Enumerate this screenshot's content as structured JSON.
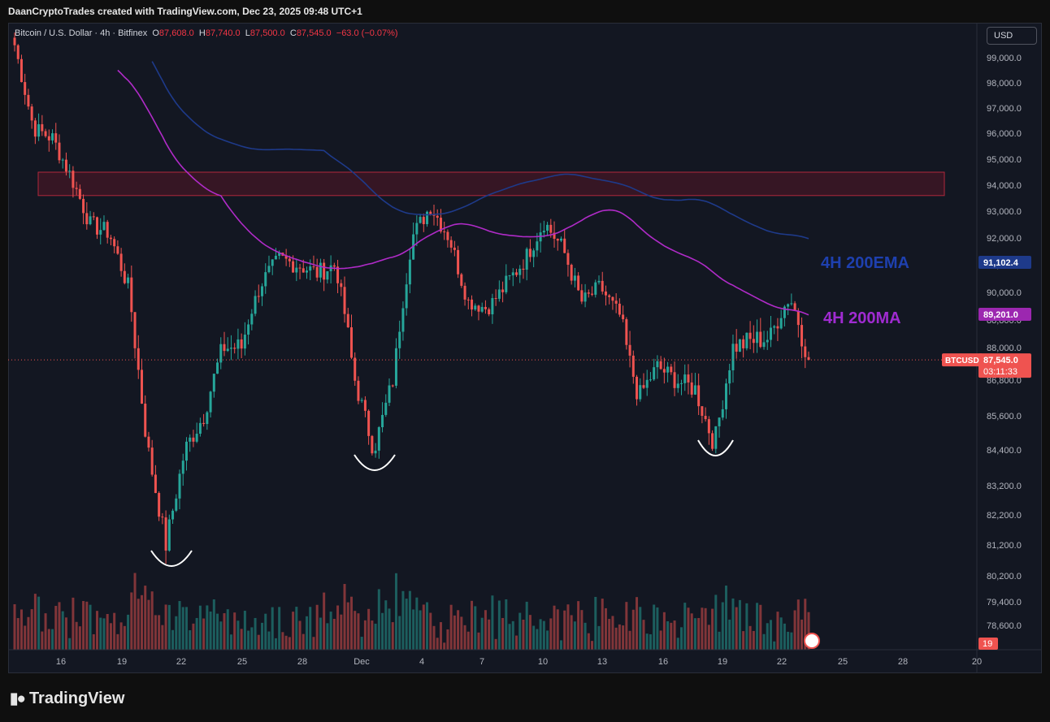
{
  "header": {
    "attribution": "DaanCryptoTrades created with TradingView.com, Dec 23, 2025 09:48 UTC+1"
  },
  "legend": {
    "symbol": "Bitcoin / U.S. Dollar · 4h · Bitfinex",
    "o_label": "O",
    "o_val": "87,608.0",
    "h_label": "H",
    "h_val": "87,740.0",
    "l_label": "L",
    "l_val": "87,500.0",
    "c_label": "C",
    "c_val": "87,545.0",
    "change": "−63.0 (−0.07%)"
  },
  "currency_button": "USD",
  "footer": {
    "brand": "TradingView"
  },
  "colors": {
    "bg": "#131722",
    "up": "#26a69a",
    "down": "#ef5350",
    "ema": "#1e3a8a",
    "ma": "#b02bc8",
    "zone": "#3d1a22"
  },
  "chart_data": {
    "type": "candlestick",
    "title": "",
    "y_ticks": [
      "99,000.0",
      "98,000.0",
      "97,000.0",
      "96,000.0",
      "95,000.0",
      "94,000.0",
      "93,000.0",
      "92,000.0",
      "91,000.0",
      "90,000.0",
      "88,800.0",
      "88,000.0",
      "86,800.0",
      "85,600.0",
      "84,400.0",
      "83,200.0",
      "82,200.0",
      "81,200.0",
      "80,200.0",
      "79,400.0",
      "78,600.0"
    ],
    "x_ticks": [
      "16",
      "19",
      "22",
      "25",
      "28",
      "Dec",
      "4",
      "7",
      "10",
      "13",
      "16",
      "19",
      "22",
      "25",
      "28",
      "20"
    ],
    "price_path": [
      {
        "date": "Nov 14",
        "price": 99500
      },
      {
        "date": "Nov 15",
        "price": 96200
      },
      {
        "date": "Nov 16",
        "price": 95800
      },
      {
        "date": "Nov 17",
        "price": 94300
      },
      {
        "date": "Nov 18",
        "price": 92500
      },
      {
        "date": "Nov 19",
        "price": 92200
      },
      {
        "date": "Nov 20",
        "price": 90200
      },
      {
        "date": "Nov 21",
        "price": 84600
      },
      {
        "date": "Nov 21 late",
        "price": 81200
      },
      {
        "date": "Nov 22",
        "price": 84400
      },
      {
        "date": "Nov 23",
        "price": 85600
      },
      {
        "date": "Nov 24",
        "price": 88000
      },
      {
        "date": "Nov 25",
        "price": 88000
      },
      {
        "date": "Nov 26",
        "price": 90300
      },
      {
        "date": "Nov 27",
        "price": 91200
      },
      {
        "date": "Nov 28",
        "price": 91000
      },
      {
        "date": "Nov 29",
        "price": 90700
      },
      {
        "date": "Nov 30",
        "price": 91000
      },
      {
        "date": "Dec 1",
        "price": 86800
      },
      {
        "date": "Dec 1 late",
        "price": 84400
      },
      {
        "date": "Dec 2",
        "price": 86800
      },
      {
        "date": "Dec 3",
        "price": 92000
      },
      {
        "date": "Dec 4",
        "price": 93200
      },
      {
        "date": "Dec 5",
        "price": 92000
      },
      {
        "date": "Dec 6",
        "price": 89600
      },
      {
        "date": "Dec 7",
        "price": 89300
      },
      {
        "date": "Dec 8",
        "price": 90300
      },
      {
        "date": "Dec 9",
        "price": 91200
      },
      {
        "date": "Dec 10",
        "price": 92600
      },
      {
        "date": "Dec 11",
        "price": 91600
      },
      {
        "date": "Dec 12",
        "price": 89600
      },
      {
        "date": "Dec 13",
        "price": 90200
      },
      {
        "date": "Dec 14",
        "price": 89000
      },
      {
        "date": "Dec 15",
        "price": 86200
      },
      {
        "date": "Dec 16",
        "price": 87300
      },
      {
        "date": "Dec 17",
        "price": 86800
      },
      {
        "date": "Dec 18",
        "price": 86500
      },
      {
        "date": "Dec 18 late",
        "price": 84600
      },
      {
        "date": "Dec 19",
        "price": 88000
      },
      {
        "date": "Dec 20",
        "price": 88200
      },
      {
        "date": "Dec 21",
        "price": 88300
      },
      {
        "date": "Dec 22",
        "price": 89800
      },
      {
        "date": "Dec 23",
        "price": 87545
      }
    ],
    "resistance_zone": {
      "low": 93600,
      "high": 94500
    },
    "series": [
      {
        "name": "4H 200EMA",
        "last_value": "91,102.4"
      },
      {
        "name": "4H 200MA",
        "last_value": "89,201.0"
      }
    ],
    "current_price": {
      "symbol": "BTCUSD",
      "value": "87,545.0",
      "countdown": "03:11:33"
    },
    "volume_axis_label": "19",
    "annotations": [
      "4H 200EMA",
      "4H 200MA"
    ],
    "grid": false
  }
}
